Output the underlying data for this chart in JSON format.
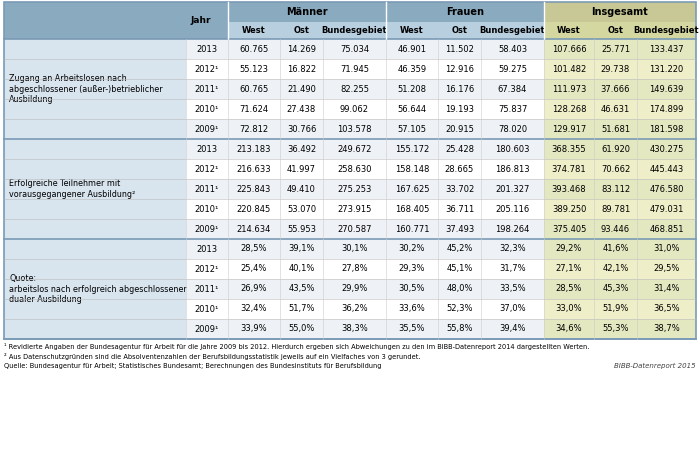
{
  "section1_label": "Zugang an Arbeitslosen nach\nabgeschlossener (außer-)betrieblicher\nAusbildung",
  "section1_data": [
    [
      "2013",
      "60.765",
      "14.269",
      "75.034",
      "46.901",
      "11.502",
      "58.403",
      "107.666",
      "25.771",
      "133.437"
    ],
    [
      "2012¹",
      "55.123",
      "16.822",
      "71.945",
      "46.359",
      "12.916",
      "59.275",
      "101.482",
      "29.738",
      "131.220"
    ],
    [
      "2011¹",
      "60.765",
      "21.490",
      "82.255",
      "51.208",
      "16.176",
      "67.384",
      "111.973",
      "37.666",
      "149.639"
    ],
    [
      "2010¹",
      "71.624",
      "27.438",
      "99.062",
      "56.644",
      "19.193",
      "75.837",
      "128.268",
      "46.631",
      "174.899"
    ],
    [
      "2009¹",
      "72.812",
      "30.766",
      "103.578",
      "57.105",
      "20.915",
      "78.020",
      "129.917",
      "51.681",
      "181.598"
    ]
  ],
  "section2_label": "Erfolgreiche Teilnehmer mit\nvorausgegangener Ausbildung²",
  "section2_data": [
    [
      "2013",
      "213.183",
      "36.492",
      "249.672",
      "155.172",
      "25.428",
      "180.603",
      "368.355",
      "61.920",
      "430.275"
    ],
    [
      "2012¹",
      "216.633",
      "41.997",
      "258.630",
      "158.148",
      "28.665",
      "186.813",
      "374.781",
      "70.662",
      "445.443"
    ],
    [
      "2011¹",
      "225.843",
      "49.410",
      "275.253",
      "167.625",
      "33.702",
      "201.327",
      "393.468",
      "83.112",
      "476.580"
    ],
    [
      "2010¹",
      "220.845",
      "53.070",
      "273.915",
      "168.405",
      "36.711",
      "205.116",
      "389.250",
      "89.781",
      "479.031"
    ],
    [
      "2009¹",
      "214.634",
      "55.953",
      "270.587",
      "160.771",
      "37.493",
      "198.264",
      "375.405",
      "93.446",
      "468.851"
    ]
  ],
  "section3_label": "Quote:\narbeitslos nach erfolgreich abgeschlossener\ndualer Ausbildung",
  "section3_data": [
    [
      "2013",
      "28,5%",
      "39,1%",
      "30,1%",
      "30,2%",
      "45,2%",
      "32,3%",
      "29,2%",
      "41,6%",
      "31,0%"
    ],
    [
      "2012¹",
      "25,4%",
      "40,1%",
      "27,8%",
      "29,3%",
      "45,1%",
      "31,7%",
      "27,1%",
      "42,1%",
      "29,5%"
    ],
    [
      "2011¹",
      "26,9%",
      "43,5%",
      "29,9%",
      "30,5%",
      "48,0%",
      "33,5%",
      "28,5%",
      "45,3%",
      "31,4%"
    ],
    [
      "2010¹",
      "32,4%",
      "51,7%",
      "36,2%",
      "33,6%",
      "52,3%",
      "37,0%",
      "33,0%",
      "51,9%",
      "36,5%"
    ],
    [
      "2009¹",
      "33,9%",
      "55,0%",
      "38,3%",
      "35,5%",
      "55,8%",
      "39,4%",
      "34,6%",
      "55,3%",
      "38,7%"
    ]
  ],
  "footnote1": "¹ Revidierte Angaben der Bundesagentur für Arbeit für die Jahre 2009 bis 2012. Hierdurch ergeben sich Abweichungen zu den im BIBB-Datenreport 2014 dargestellten Werten.",
  "footnote2": "² Aus Datenschutzgründen sind die Absolventenzahlen der Berufsbildungsstatistik jeweils auf ein Vielfaches von 3 gerundet.",
  "source": "Quelle: Bundesagentur für Arbeit; Statistisches Bundesamt; Berechnungen des Bundesinstituts für Berufsbildung",
  "branding": "BIBB-Datenreport 2015",
  "col_header_main": "#8aaac0",
  "col_header_mf_sub": "#b8cfe0",
  "col_header_ins_top": "#c8c896",
  "col_header_ins_sub": "#d4d8a0",
  "col_label_bg": "#d8e4ee",
  "col_row_odd": "#eef2f6",
  "col_row_even": "#ffffff",
  "col_ins_odd": "#e4e8c0",
  "col_ins_even": "#eeeec8",
  "col_divider": "#7a9ab5"
}
